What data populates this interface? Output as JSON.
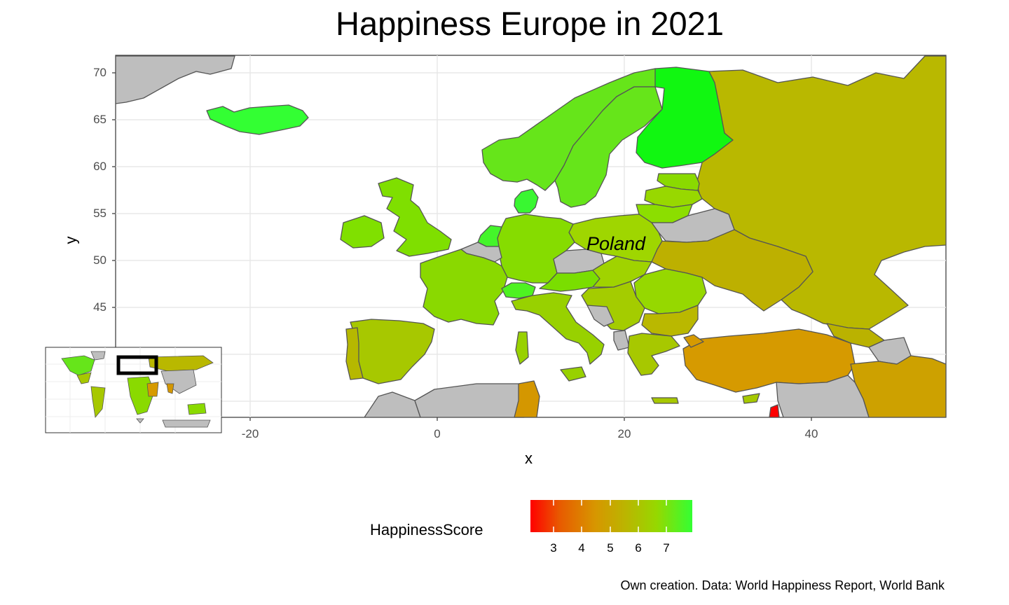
{
  "title": "Happiness Europe in 2021",
  "x_axis": {
    "label": "x",
    "ticks": [
      "-20",
      "0",
      "20",
      "40"
    ]
  },
  "y_axis": {
    "label": "y",
    "ticks": [
      "70",
      "65",
      "60",
      "55",
      "50",
      "45"
    ]
  },
  "annotation": "Poland",
  "legend": {
    "title": "HappinessScore",
    "ticks": [
      "3",
      "4",
      "5",
      "6",
      "7"
    ]
  },
  "caption": "Own creation. Data: World Happiness Report, World Bank",
  "colors": {
    "no_data": "#bebebe",
    "border": "#555555",
    "low": "#ff0000",
    "high": "#33ff33"
  },
  "map_data": {
    "projection": "longitude-latitude",
    "extent_lon": [
      -23,
      54
    ],
    "extent_lat": [
      34,
      72
    ],
    "regions": [
      {
        "name": "Iceland",
        "score": 7.6
      },
      {
        "name": "Norway",
        "score": 7.4
      },
      {
        "name": "Sweden",
        "score": 7.4
      },
      {
        "name": "Finland",
        "score": 7.8
      },
      {
        "name": "Denmark",
        "score": 7.6
      },
      {
        "name": "United Kingdom",
        "score": 7.1
      },
      {
        "name": "Ireland",
        "score": 7.1
      },
      {
        "name": "Netherlands",
        "score": 7.5
      },
      {
        "name": "Germany",
        "score": 7.2
      },
      {
        "name": "France",
        "score": 6.7
      },
      {
        "name": "Spain",
        "score": 6.5
      },
      {
        "name": "Portugal",
        "score": 5.9
      },
      {
        "name": "Italy",
        "score": 6.5
      },
      {
        "name": "Switzerland",
        "score": 7.6
      },
      {
        "name": "Austria",
        "score": 7.3
      },
      {
        "name": "Poland",
        "score": 6.2
      },
      {
        "name": "Lithuania",
        "score": 6.3
      },
      {
        "name": "Latvia",
        "score": 6.0
      },
      {
        "name": "Estonia",
        "score": 6.2
      },
      {
        "name": "Ukraine",
        "score": 4.9
      },
      {
        "name": "Russia",
        "score": 5.5
      },
      {
        "name": "Romania",
        "score": 6.1
      },
      {
        "name": "Bulgaria",
        "score": 5.3
      },
      {
        "name": "Greece",
        "score": 5.7
      },
      {
        "name": "Turkey",
        "score": 4.9
      },
      {
        "name": "Georgia",
        "score": 4.9
      },
      {
        "name": "Tunisia",
        "score": 4.6
      },
      {
        "name": "Lebanon",
        "score": 2.9
      }
    ]
  }
}
